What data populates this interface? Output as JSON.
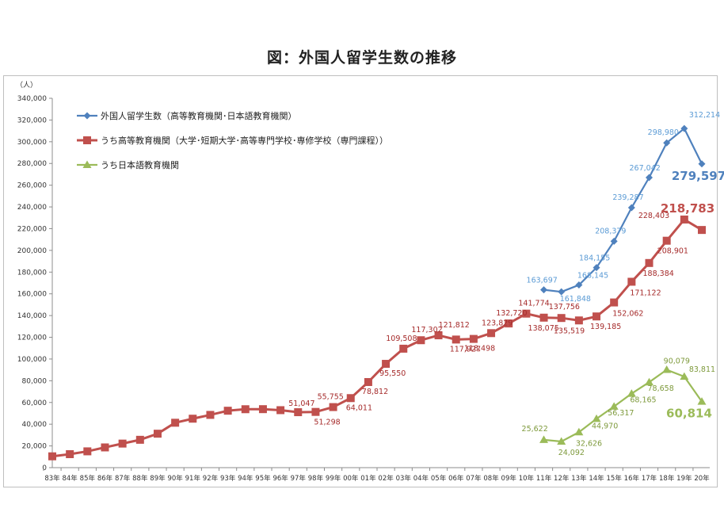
{
  "title": "図：外国人留学生数の推移",
  "chart_data": {
    "type": "line",
    "ylabel": "（人）",
    "ylim": [
      0,
      340000
    ],
    "yticks": [
      "0",
      "20,000",
      "40,000",
      "60,000",
      "80,000",
      "100,000",
      "120,000",
      "140,000",
      "160,000",
      "180,000",
      "200,000",
      "220,000",
      "240,000",
      "260,000",
      "280,000",
      "300,000",
      "320,000",
      "340,000"
    ],
    "categories": [
      "83年",
      "84年",
      "85年",
      "86年",
      "87年",
      "88年",
      "89年",
      "90年",
      "91年",
      "92年",
      "93年",
      "94年",
      "95年",
      "96年",
      "97年",
      "98年",
      "99年",
      "00年",
      "01年",
      "02年",
      "03年",
      "04年",
      "05年",
      "06年",
      "07年",
      "08年",
      "09年",
      "10年",
      "11年",
      "12年",
      "13年",
      "14年",
      "15年",
      "16年",
      "17年",
      "18年",
      "19年",
      "20年"
    ],
    "series": [
      {
        "name": "外国人留学生数（高等教育機関･日本語教育機関）",
        "color": "#4f81bd",
        "marker": "diamond",
        "values": [
          null,
          null,
          null,
          null,
          null,
          null,
          null,
          null,
          null,
          null,
          null,
          null,
          null,
          null,
          null,
          null,
          null,
          null,
          null,
          null,
          null,
          null,
          null,
          null,
          null,
          null,
          null,
          null,
          163697,
          161848,
          168145,
          184155,
          208379,
          239287,
          267042,
          298980,
          312214,
          279597
        ],
        "labels": [
          null,
          null,
          null,
          null,
          null,
          null,
          null,
          null,
          null,
          null,
          null,
          null,
          null,
          null,
          null,
          null,
          null,
          null,
          null,
          null,
          null,
          null,
          null,
          null,
          null,
          null,
          null,
          null,
          "163,697",
          "161,848",
          "168,145",
          "184,155",
          "208,379",
          "239,287",
          "267,042",
          "298,980",
          "312,214",
          "279,597"
        ]
      },
      {
        "name": "うち高等教育機関（大学･短期大学･高等専門学校･専修学校（専門課程））",
        "color": "#c0504d",
        "marker": "square",
        "values": [
          10428,
          12410,
          15009,
          18631,
          22154,
          25643,
          31251,
          41347,
          45066,
          48561,
          52405,
          53787,
          53847,
          52921,
          51047,
          51298,
          55755,
          64011,
          78812,
          95550,
          109508,
          117302,
          121812,
          117927,
          118498,
          123829,
          132720,
          141774,
          138075,
          137756,
          135519,
          139185,
          152062,
          171122,
          188384,
          208901,
          228403,
          218783
        ],
        "labels": [
          null,
          null,
          null,
          null,
          null,
          null,
          null,
          null,
          null,
          null,
          null,
          null,
          null,
          null,
          "51,047",
          "51,298",
          "55,755",
          "64,011",
          "78,812",
          "95,550",
          "109,508",
          "117,302",
          "121,812",
          "117,927",
          "118,498",
          "123,829",
          "132,720",
          "141,774",
          "138,075",
          "137,756",
          "135,519",
          "139,185",
          "152,062",
          "171,122",
          "188,384",
          "208,901",
          "228,403",
          "218,783"
        ]
      },
      {
        "name": "うち日本語教育機関",
        "color": "#9bbb59",
        "marker": "triangle",
        "values": [
          null,
          null,
          null,
          null,
          null,
          null,
          null,
          null,
          null,
          null,
          null,
          null,
          null,
          null,
          null,
          null,
          null,
          null,
          null,
          null,
          null,
          null,
          null,
          null,
          null,
          null,
          null,
          null,
          25622,
          24092,
          32626,
          44970,
          56317,
          68165,
          78658,
          90079,
          83811,
          60814
        ],
        "labels": [
          null,
          null,
          null,
          null,
          null,
          null,
          null,
          null,
          null,
          null,
          null,
          null,
          null,
          null,
          null,
          null,
          null,
          null,
          null,
          null,
          null,
          null,
          null,
          null,
          null,
          null,
          null,
          null,
          "25,622",
          "24,092",
          "32,626",
          "44,970",
          "56,317",
          "68,165",
          "78,658",
          "90,079",
          "83,811",
          "60,814"
        ]
      }
    ],
    "legend": "top-left",
    "grid": false
  }
}
